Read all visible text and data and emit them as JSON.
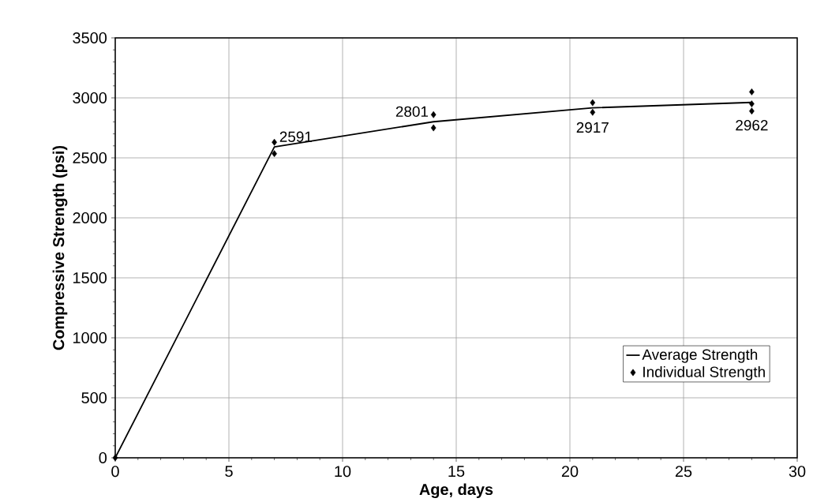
{
  "chart_data": {
    "type": "line",
    "xlabel": "Age, days",
    "ylabel": "Compressive Strength (psi)",
    "xlim": [
      0,
      30
    ],
    "xticks": [
      0,
      5,
      10,
      15,
      20,
      25,
      30
    ],
    "ylim": [
      0,
      3500
    ],
    "yticks": [
      0,
      500,
      1000,
      1500,
      2000,
      2500,
      3000,
      3500
    ],
    "grid": true,
    "legend": "bottom right",
    "series": [
      {
        "name": "Average Strength",
        "color": "#000000",
        "marker": "none",
        "line_style": "solid",
        "x": [
          0,
          7,
          14,
          21,
          28
        ],
        "values": [
          0,
          2591,
          2801,
          2917,
          2962
        ],
        "value_labels": [
          null,
          "2591",
          "2801",
          "2917",
          "2962"
        ]
      },
      {
        "name": "Individual Strength",
        "type": "scatter",
        "color": "#000000",
        "marker": "diamond",
        "x": [
          0,
          7,
          7,
          14,
          14,
          21,
          21,
          28,
          28,
          28
        ],
        "values": [
          0,
          2630,
          2535,
          2860,
          2750,
          2960,
          2880,
          3050,
          2950,
          2890
        ]
      }
    ]
  }
}
